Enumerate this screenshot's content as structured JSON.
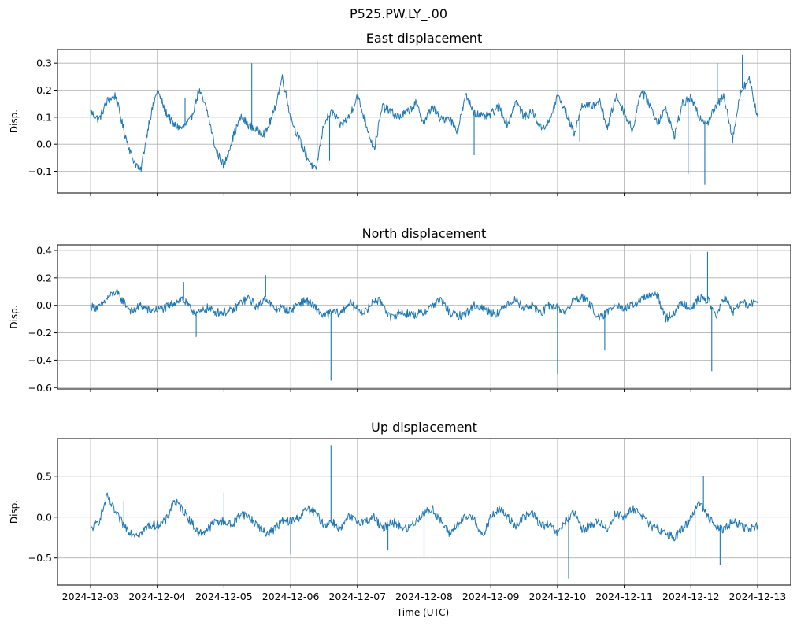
{
  "suptitle": "P525.PW.LY_.00",
  "xlabel": "Time (UTC)",
  "x_tick_labels": [
    "2024-12-03",
    "2024-12-04",
    "2024-12-05",
    "2024-12-06",
    "2024-12-07",
    "2024-12-08",
    "2024-12-09",
    "2024-12-10",
    "2024-12-11",
    "2024-12-12",
    "2024-12-13"
  ],
  "colors": {
    "line": "#1f77b4",
    "grid": "#b0b0b0",
    "axes": "#000000"
  },
  "chart_data": [
    {
      "type": "line",
      "title": "East displacement",
      "ylabel": "Disp.",
      "xlim": [
        "2024-12-03T00:00",
        "2024-12-13T00:00"
      ],
      "ylim": [
        -0.18,
        0.35
      ],
      "yticks": [
        -0.1,
        0.0,
        0.1,
        0.2,
        0.3
      ],
      "ytick_labels": [
        "−0.1",
        "0.0",
        "0.1",
        "0.2",
        "0.3"
      ],
      "grid": true,
      "series": [
        {
          "x": [
            "2024-12-03T00:00",
            "2024-12-03T03:00",
            "2024-12-03T06:00",
            "2024-12-03T09:00",
            "2024-12-03T12:00",
            "2024-12-03T15:00",
            "2024-12-03T18:00",
            "2024-12-03T21:00",
            "2024-12-04T00:00",
            "2024-12-04T03:00",
            "2024-12-04T06:00",
            "2024-12-04T09:00",
            "2024-12-04T12:00",
            "2024-12-04T15:00",
            "2024-12-04T18:00",
            "2024-12-04T21:00",
            "2024-12-05T00:00",
            "2024-12-05T03:00",
            "2024-12-05T06:00",
            "2024-12-05T09:00",
            "2024-12-05T12:00",
            "2024-12-05T15:00",
            "2024-12-05T18:00",
            "2024-12-05T21:00",
            "2024-12-06T00:00",
            "2024-12-06T03:00",
            "2024-12-06T06:00",
            "2024-12-06T09:00",
            "2024-12-06T12:00",
            "2024-12-06T15:00",
            "2024-12-06T18:00",
            "2024-12-06T21:00",
            "2024-12-07T00:00",
            "2024-12-07T03:00",
            "2024-12-07T06:00",
            "2024-12-07T09:00",
            "2024-12-07T12:00",
            "2024-12-07T15:00",
            "2024-12-07T18:00",
            "2024-12-07T21:00",
            "2024-12-08T00:00",
            "2024-12-08T03:00",
            "2024-12-08T06:00",
            "2024-12-08T09:00",
            "2024-12-08T12:00",
            "2024-12-08T15:00",
            "2024-12-08T18:00",
            "2024-12-08T21:00",
            "2024-12-09T00:00",
            "2024-12-09T03:00",
            "2024-12-09T06:00",
            "2024-12-09T09:00",
            "2024-12-09T12:00",
            "2024-12-09T15:00",
            "2024-12-09T18:00",
            "2024-12-09T21:00",
            "2024-12-10T00:00",
            "2024-12-10T03:00",
            "2024-12-10T06:00",
            "2024-12-10T09:00",
            "2024-12-10T12:00",
            "2024-12-10T15:00",
            "2024-12-10T18:00",
            "2024-12-10T21:00",
            "2024-12-11T00:00",
            "2024-12-11T03:00",
            "2024-12-11T06:00",
            "2024-12-11T09:00",
            "2024-12-11T12:00",
            "2024-12-11T15:00",
            "2024-12-11T18:00",
            "2024-12-11T21:00",
            "2024-12-12T00:00",
            "2024-12-12T03:00",
            "2024-12-12T06:00",
            "2024-12-12T09:00",
            "2024-12-12T12:00",
            "2024-12-12T15:00",
            "2024-12-12T18:00",
            "2024-12-12T21:00",
            "2024-12-13T00:00"
          ],
          "y": [
            0.12,
            0.09,
            0.16,
            0.18,
            0.05,
            -0.05,
            -0.1,
            0.08,
            0.2,
            0.12,
            0.07,
            0.06,
            0.09,
            0.2,
            0.12,
            -0.02,
            -0.08,
            0.02,
            0.1,
            0.07,
            0.05,
            0.04,
            0.12,
            0.25,
            0.1,
            0.02,
            -0.05,
            -0.1,
            0.08,
            0.12,
            0.07,
            0.1,
            0.18,
            0.08,
            -0.02,
            0.14,
            0.12,
            0.1,
            0.12,
            0.15,
            0.08,
            0.14,
            0.09,
            0.1,
            0.05,
            0.18,
            0.12,
            0.1,
            0.11,
            0.14,
            0.07,
            0.16,
            0.1,
            0.12,
            0.06,
            0.08,
            0.18,
            0.12,
            0.04,
            0.15,
            0.14,
            0.16,
            0.06,
            0.18,
            0.12,
            0.05,
            0.2,
            0.15,
            0.08,
            0.13,
            0.03,
            0.15,
            0.17,
            0.1,
            0.08,
            0.14,
            0.18,
            0.02,
            0.2,
            0.24,
            0.1
          ]
        }
      ],
      "spikes": [
        {
          "x": "2024-12-04T10:00",
          "y": 0.17
        },
        {
          "x": "2024-12-05T10:00",
          "y": 0.3
        },
        {
          "x": "2024-12-06T09:30",
          "y": 0.31
        },
        {
          "x": "2024-12-06T14:00",
          "y": -0.06
        },
        {
          "x": "2024-12-08T18:00",
          "y": -0.04
        },
        {
          "x": "2024-12-10T08:00",
          "y": 0.01
        },
        {
          "x": "2024-12-11T23:00",
          "y": -0.11
        },
        {
          "x": "2024-12-12T05:00",
          "y": -0.15
        },
        {
          "x": "2024-12-12T09:30",
          "y": 0.3
        },
        {
          "x": "2024-12-12T18:30",
          "y": 0.33
        }
      ]
    },
    {
      "type": "line",
      "title": "North displacement",
      "ylabel": "Disp.",
      "xlim": [
        "2024-12-03T00:00",
        "2024-12-13T00:00"
      ],
      "ylim": [
        -0.61,
        0.44
      ],
      "yticks": [
        -0.6,
        -0.4,
        -0.2,
        0.0,
        0.2,
        0.4
      ],
      "ytick_labels": [
        "−0.6",
        "−0.4",
        "−0.2",
        "0.0",
        "0.2",
        "0.4"
      ],
      "grid": true,
      "series": [
        {
          "x": [
            "2024-12-03T00:00",
            "2024-12-03T03:00",
            "2024-12-03T06:00",
            "2024-12-03T09:00",
            "2024-12-03T12:00",
            "2024-12-03T15:00",
            "2024-12-03T18:00",
            "2024-12-03T21:00",
            "2024-12-04T00:00",
            "2024-12-04T03:00",
            "2024-12-04T06:00",
            "2024-12-04T09:00",
            "2024-12-04T12:00",
            "2024-12-04T15:00",
            "2024-12-04T18:00",
            "2024-12-04T21:00",
            "2024-12-05T00:00",
            "2024-12-05T03:00",
            "2024-12-05T06:00",
            "2024-12-05T09:00",
            "2024-12-05T12:00",
            "2024-12-05T15:00",
            "2024-12-05T18:00",
            "2024-12-05T21:00",
            "2024-12-06T00:00",
            "2024-12-06T03:00",
            "2024-12-06T06:00",
            "2024-12-06T09:00",
            "2024-12-06T12:00",
            "2024-12-06T15:00",
            "2024-12-06T18:00",
            "2024-12-06T21:00",
            "2024-12-07T00:00",
            "2024-12-07T03:00",
            "2024-12-07T06:00",
            "2024-12-07T09:00",
            "2024-12-07T12:00",
            "2024-12-07T15:00",
            "2024-12-07T18:00",
            "2024-12-07T21:00",
            "2024-12-08T00:00",
            "2024-12-08T03:00",
            "2024-12-08T06:00",
            "2024-12-08T09:00",
            "2024-12-08T12:00",
            "2024-12-08T15:00",
            "2024-12-08T18:00",
            "2024-12-08T21:00",
            "2024-12-09T00:00",
            "2024-12-09T03:00",
            "2024-12-09T06:00",
            "2024-12-09T09:00",
            "2024-12-09T12:00",
            "2024-12-09T15:00",
            "2024-12-09T18:00",
            "2024-12-09T21:00",
            "2024-12-10T00:00",
            "2024-12-10T03:00",
            "2024-12-10T06:00",
            "2024-12-10T09:00",
            "2024-12-10T12:00",
            "2024-12-10T15:00",
            "2024-12-10T18:00",
            "2024-12-10T21:00",
            "2024-12-11T00:00",
            "2024-12-11T03:00",
            "2024-12-11T06:00",
            "2024-12-11T09:00",
            "2024-12-11T12:00",
            "2024-12-11T15:00",
            "2024-12-11T18:00",
            "2024-12-11T21:00",
            "2024-12-12T00:00",
            "2024-12-12T03:00",
            "2024-12-12T06:00",
            "2024-12-12T09:00",
            "2024-12-12T12:00",
            "2024-12-12T15:00",
            "2024-12-12T18:00",
            "2024-12-12T21:00",
            "2024-12-13T00:00"
          ],
          "y": [
            -0.01,
            -0.02,
            0.05,
            0.1,
            0.02,
            -0.05,
            0.0,
            -0.04,
            -0.03,
            -0.02,
            0.02,
            0.05,
            -0.03,
            -0.06,
            -0.02,
            -0.05,
            -0.05,
            -0.04,
            0.02,
            0.05,
            -0.02,
            0.06,
            -0.03,
            -0.02,
            -0.04,
            0.02,
            0.03,
            -0.02,
            -0.08,
            -0.05,
            -0.06,
            0.02,
            -0.03,
            -0.05,
            0.04,
            0.02,
            -0.1,
            -0.05,
            -0.06,
            -0.07,
            -0.05,
            0.0,
            0.04,
            -0.05,
            -0.08,
            -0.06,
            0.0,
            -0.02,
            -0.05,
            -0.06,
            0.02,
            0.04,
            -0.02,
            0.0,
            -0.06,
            0.0,
            -0.02,
            -0.05,
            0.04,
            0.06,
            0.0,
            -0.1,
            -0.05,
            0.02,
            -0.03,
            0.0,
            0.04,
            0.07,
            0.07,
            -0.1,
            -0.05,
            0.02,
            -0.02,
            0.05,
            0.04,
            -0.08,
            0.06,
            -0.05,
            0.02,
            0.0,
            0.03
          ]
        }
      ],
      "spikes": [
        {
          "x": "2024-12-04T09:30",
          "y": 0.17
        },
        {
          "x": "2024-12-04T14:00",
          "y": -0.23
        },
        {
          "x": "2024-12-05T15:00",
          "y": 0.22
        },
        {
          "x": "2024-12-06T14:30",
          "y": -0.55
        },
        {
          "x": "2024-12-10T00:00",
          "y": -0.5
        },
        {
          "x": "2024-12-10T17:00",
          "y": -0.33
        },
        {
          "x": "2024-12-12T00:00",
          "y": 0.37
        },
        {
          "x": "2024-12-12T06:00",
          "y": 0.39
        },
        {
          "x": "2024-12-12T07:30",
          "y": -0.48
        }
      ]
    },
    {
      "type": "line",
      "title": "Up displacement",
      "ylabel": "Disp.",
      "xlim": [
        "2024-12-03T00:00",
        "2024-12-13T00:00"
      ],
      "ylim": [
        -0.83,
        0.96
      ],
      "yticks": [
        -0.5,
        0.0,
        0.5
      ],
      "ytick_labels": [
        "−0.5",
        "0.0",
        "0.5"
      ],
      "grid": true,
      "series": [
        {
          "x": [
            "2024-12-03T00:00",
            "2024-12-03T03:00",
            "2024-12-03T06:00",
            "2024-12-03T09:00",
            "2024-12-03T12:00",
            "2024-12-03T15:00",
            "2024-12-03T18:00",
            "2024-12-03T21:00",
            "2024-12-04T00:00",
            "2024-12-04T03:00",
            "2024-12-04T06:00",
            "2024-12-04T09:00",
            "2024-12-04T12:00",
            "2024-12-04T15:00",
            "2024-12-04T18:00",
            "2024-12-04T21:00",
            "2024-12-05T00:00",
            "2024-12-05T03:00",
            "2024-12-05T06:00",
            "2024-12-05T09:00",
            "2024-12-05T12:00",
            "2024-12-05T15:00",
            "2024-12-05T18:00",
            "2024-12-05T21:00",
            "2024-12-06T00:00",
            "2024-12-06T03:00",
            "2024-12-06T06:00",
            "2024-12-06T09:00",
            "2024-12-06T12:00",
            "2024-12-06T15:00",
            "2024-12-06T18:00",
            "2024-12-06T21:00",
            "2024-12-07T00:00",
            "2024-12-07T03:00",
            "2024-12-07T06:00",
            "2024-12-07T09:00",
            "2024-12-07T12:00",
            "2024-12-07T15:00",
            "2024-12-07T18:00",
            "2024-12-07T21:00",
            "2024-12-08T00:00",
            "2024-12-08T03:00",
            "2024-12-08T06:00",
            "2024-12-08T09:00",
            "2024-12-08T12:00",
            "2024-12-08T15:00",
            "2024-12-08T18:00",
            "2024-12-08T21:00",
            "2024-12-09T00:00",
            "2024-12-09T03:00",
            "2024-12-09T06:00",
            "2024-12-09T09:00",
            "2024-12-09T12:00",
            "2024-12-09T15:00",
            "2024-12-09T18:00",
            "2024-12-09T21:00",
            "2024-12-10T00:00",
            "2024-12-10T03:00",
            "2024-12-10T06:00",
            "2024-12-10T09:00",
            "2024-12-10T12:00",
            "2024-12-10T15:00",
            "2024-12-10T18:00",
            "2024-12-10T21:00",
            "2024-12-11T00:00",
            "2024-12-11T03:00",
            "2024-12-11T06:00",
            "2024-12-11T09:00",
            "2024-12-11T12:00",
            "2024-12-11T15:00",
            "2024-12-11T18:00",
            "2024-12-11T21:00",
            "2024-12-12T00:00",
            "2024-12-12T03:00",
            "2024-12-12T06:00",
            "2024-12-12T09:00",
            "2024-12-12T12:00",
            "2024-12-12T15:00",
            "2024-12-12T18:00",
            "2024-12-12T21:00",
            "2024-12-13T00:00"
          ],
          "y": [
            -0.15,
            -0.05,
            0.25,
            0.05,
            -0.1,
            -0.2,
            -0.2,
            -0.1,
            -0.1,
            -0.05,
            0.2,
            0.1,
            -0.05,
            -0.2,
            -0.15,
            -0.05,
            -0.05,
            -0.1,
            0.05,
            0.0,
            -0.1,
            -0.2,
            -0.15,
            -0.05,
            -0.05,
            0.0,
            0.1,
            0.05,
            -0.1,
            -0.05,
            -0.15,
            0.0,
            -0.05,
            -0.05,
            0.0,
            -0.15,
            -0.05,
            -0.1,
            -0.15,
            -0.05,
            0.05,
            0.1,
            -0.05,
            -0.2,
            -0.1,
            0.0,
            0.0,
            -0.25,
            0.0,
            0.1,
            0.0,
            -0.1,
            0.0,
            0.05,
            -0.1,
            -0.1,
            -0.2,
            -0.05,
            0.05,
            -0.15,
            -0.1,
            -0.05,
            -0.15,
            0.05,
            0.0,
            0.1,
            0.05,
            -0.1,
            -0.15,
            -0.2,
            -0.25,
            -0.15,
            0.0,
            0.2,
            0.0,
            -0.1,
            -0.15,
            -0.05,
            -0.1,
            -0.15,
            -0.1
          ]
        }
      ],
      "spikes": [
        {
          "x": "2024-12-03T12:00",
          "y": 0.2
        },
        {
          "x": "2024-12-05T00:00",
          "y": 0.3
        },
        {
          "x": "2024-12-06T00:00",
          "y": -0.45
        },
        {
          "x": "2024-12-06T14:30",
          "y": 0.88
        },
        {
          "x": "2024-12-07T11:00",
          "y": -0.4
        },
        {
          "x": "2024-12-08T00:00",
          "y": -0.5
        },
        {
          "x": "2024-12-10T04:00",
          "y": -0.75
        },
        {
          "x": "2024-12-12T01:30",
          "y": -0.48
        },
        {
          "x": "2024-12-12T04:30",
          "y": 0.5
        },
        {
          "x": "2024-12-12T10:30",
          "y": -0.58
        }
      ]
    }
  ]
}
